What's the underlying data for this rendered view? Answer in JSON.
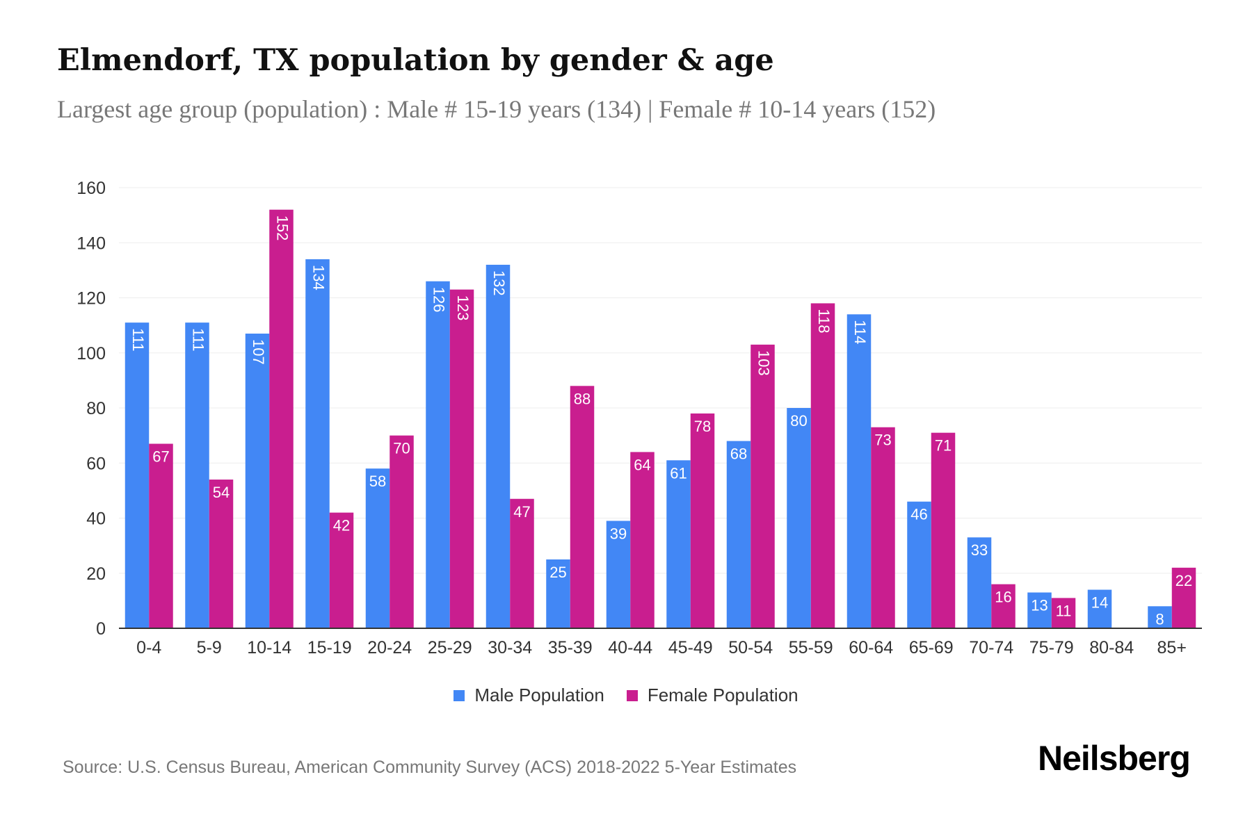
{
  "title": "Elmendorf, TX population by gender & age",
  "subtitle": "Largest age group (population) : Male # 15-19 years (134) | Female # 10-14 years (152)",
  "source": "Source: U.S. Census Bureau, American Community Survey (ACS) 2018-2022 5-Year Estimates",
  "logo": "Neilsberg",
  "chart_data": {
    "type": "bar",
    "categories": [
      "0-4",
      "5-9",
      "10-14",
      "15-19",
      "20-24",
      "25-29",
      "30-34",
      "35-39",
      "40-44",
      "45-49",
      "50-54",
      "55-59",
      "60-64",
      "65-69",
      "70-74",
      "75-79",
      "80-84",
      "85+"
    ],
    "series": [
      {
        "name": "Male Population",
        "color": "#4287f5",
        "values": [
          111,
          111,
          107,
          134,
          58,
          126,
          132,
          25,
          39,
          61,
          68,
          80,
          114,
          46,
          33,
          13,
          14,
          8
        ]
      },
      {
        "name": "Female Population",
        "color": "#c91e8f",
        "values": [
          67,
          54,
          152,
          42,
          70,
          123,
          47,
          88,
          64,
          78,
          103,
          118,
          73,
          71,
          16,
          11,
          0,
          22
        ]
      }
    ],
    "ylim": [
      0,
      160
    ],
    "yticks": [
      0,
      20,
      40,
      60,
      80,
      100,
      120,
      140,
      160
    ],
    "grid": true,
    "legend": "bottom",
    "xlabel": "",
    "ylabel": ""
  }
}
